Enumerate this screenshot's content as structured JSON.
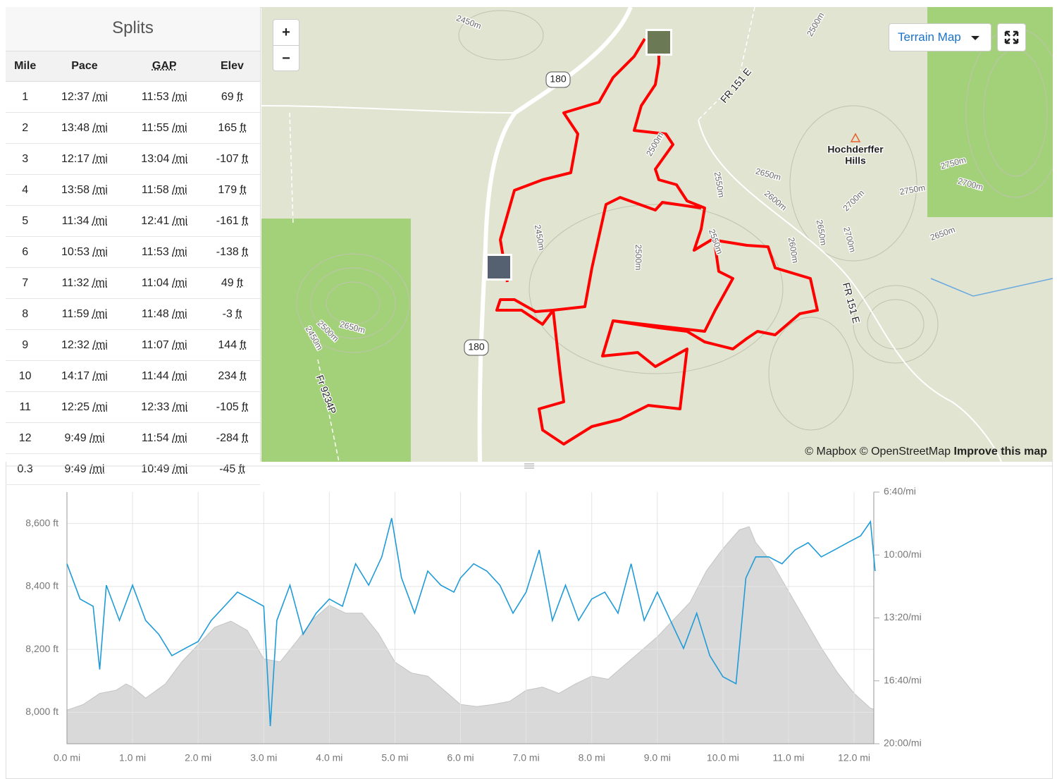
{
  "splits": {
    "title": "Splits",
    "columns": [
      "Mile",
      "Pace",
      "GAP",
      "Elev"
    ],
    "pace_unit": "/mi",
    "elev_unit": "ft",
    "rows": [
      [
        "1",
        "12:37",
        "11:53",
        "69"
      ],
      [
        "2",
        "13:48",
        "11:55",
        "165"
      ],
      [
        "3",
        "12:17",
        "13:04",
        "-107"
      ],
      [
        "4",
        "13:58",
        "11:58",
        "179"
      ],
      [
        "5",
        "11:34",
        "12:41",
        "-161"
      ],
      [
        "6",
        "10:53",
        "11:53",
        "-138"
      ],
      [
        "7",
        "11:32",
        "11:04",
        "49"
      ],
      [
        "8",
        "11:59",
        "11:48",
        "-3"
      ],
      [
        "9",
        "12:32",
        "11:07",
        "144"
      ],
      [
        "10",
        "14:17",
        "11:44",
        "234"
      ],
      [
        "11",
        "12:25",
        "12:33",
        "-105"
      ],
      [
        "12",
        "9:49",
        "11:54",
        "-284"
      ],
      [
        "0.3",
        "9:49",
        "10:49",
        "-45"
      ]
    ]
  },
  "map": {
    "zoom_in": "+",
    "zoom_out": "−",
    "layer": "Terrain Map",
    "attribution": "© Mapbox © OpenStreetMap",
    "improve": "Improve this map",
    "labels": [
      "2450m",
      "2500m",
      "180",
      "180",
      "FR 151 E",
      "FR 151 E",
      "Hochderffer",
      "Hills",
      "2500m",
      "2650m",
      "2550m",
      "2600m",
      "2700m",
      "2750m",
      "2750m",
      "2700m",
      "2700m",
      "2650m",
      "2650m",
      "2600m",
      "2550m",
      "2500m",
      "2450m",
      "2650m",
      "2500m",
      "2450m",
      "Fr 9234P"
    ]
  },
  "chart_data": {
    "type": "line",
    "xlim": [
      0,
      12.3
    ],
    "xticks": [
      {
        "value": 0,
        "label": "0.0 mi"
      },
      {
        "value": 1,
        "label": "1.0 mi"
      },
      {
        "value": 2,
        "label": "2.0 mi"
      },
      {
        "value": 3,
        "label": "3.0 mi"
      },
      {
        "value": 4,
        "label": "4.0 mi"
      },
      {
        "value": 5,
        "label": "5.0 mi"
      },
      {
        "value": 6,
        "label": "6.0 mi"
      },
      {
        "value": 7,
        "label": "7.0 mi"
      },
      {
        "value": 8,
        "label": "8.0 mi"
      },
      {
        "value": 9,
        "label": "9.0 mi"
      },
      {
        "value": 10,
        "label": "10.0 mi"
      },
      {
        "value": 11,
        "label": "11.0 mi"
      },
      {
        "value": 12,
        "label": "12.0 mi"
      }
    ],
    "ylim": [
      7900,
      8700
    ],
    "yticks": [
      {
        "value": 8000,
        "label": "8,000 ft"
      },
      {
        "value": 8200,
        "label": "8,200 ft"
      },
      {
        "value": 8400,
        "label": "8,400 ft"
      },
      {
        "value": 8600,
        "label": "8,600 ft"
      }
    ],
    "y2lim": [
      1200,
      400
    ],
    "y2ticks": [
      {
        "value": 400,
        "label": "6:40/mi"
      },
      {
        "value": 600,
        "label": "10:00/mi"
      },
      {
        "value": 800,
        "label": "13:20/mi"
      },
      {
        "value": 1000,
        "label": "16:40/mi"
      },
      {
        "value": 1200,
        "label": "20:00/mi"
      }
    ],
    "grid": true,
    "series": [
      {
        "type": "area",
        "color": "#d9d9d9",
        "x": [
          0,
          0.25,
          0.5,
          0.75,
          0.9,
          1.0,
          1.2,
          1.5,
          1.75,
          2.0,
          2.25,
          2.5,
          2.75,
          3.0,
          3.25,
          3.5,
          3.75,
          4.0,
          4.25,
          4.5,
          4.75,
          5.0,
          5.25,
          5.5,
          5.75,
          6.0,
          6.25,
          6.5,
          6.75,
          7.0,
          7.25,
          7.5,
          7.75,
          8.0,
          8.25,
          8.5,
          8.75,
          9.0,
          9.25,
          9.5,
          9.75,
          10.0,
          10.25,
          10.4,
          10.5,
          10.75,
          11.0,
          11.25,
          11.5,
          11.75,
          12.0,
          12.25,
          12.3
        ],
        "values": [
          8007,
          8025,
          8060,
          8070,
          8090,
          8080,
          8045,
          8090,
          8160,
          8215,
          8270,
          8290,
          8260,
          8170,
          8160,
          8225,
          8295,
          8340,
          8315,
          8315,
          8250,
          8160,
          8125,
          8115,
          8070,
          8025,
          8018,
          8025,
          8035,
          8070,
          8080,
          8060,
          8090,
          8115,
          8105,
          8150,
          8195,
          8240,
          8295,
          8350,
          8450,
          8520,
          8580,
          8590,
          8540,
          8475,
          8385,
          8295,
          8205,
          8125,
          8060,
          8013,
          8010
        ]
      },
      {
        "type": "line",
        "color": "#1f9bd7",
        "axis": "y2",
        "x": [
          0,
          0.2,
          0.4,
          0.5,
          0.6,
          0.8,
          1.0,
          1.2,
          1.4,
          1.6,
          1.8,
          2.0,
          2.2,
          2.4,
          2.6,
          2.8,
          3.0,
          3.1,
          3.2,
          3.4,
          3.6,
          3.8,
          4.0,
          4.2,
          4.4,
          4.6,
          4.8,
          4.95,
          5.1,
          5.3,
          5.5,
          5.7,
          5.9,
          6.0,
          6.2,
          6.4,
          6.6,
          6.8,
          7.0,
          7.2,
          7.4,
          7.6,
          7.8,
          8.0,
          8.2,
          8.4,
          8.6,
          8.8,
          9.0,
          9.2,
          9.4,
          9.6,
          9.8,
          10.0,
          10.2,
          10.35,
          10.5,
          10.7,
          10.9,
          11.1,
          11.3,
          11.5,
          11.7,
          11.9,
          12.1,
          12.25,
          12.32
        ],
        "values": [
          628,
          740,
          763,
          964,
          696,
          808,
          696,
          808,
          852,
          920,
          897,
          875,
          808,
          763,
          718,
          740,
          763,
          1144,
          808,
          696,
          852,
          785,
          740,
          763,
          628,
          696,
          606,
          483,
          673,
          785,
          651,
          696,
          718,
          673,
          628,
          651,
          696,
          785,
          718,
          584,
          808,
          696,
          808,
          740,
          718,
          785,
          628,
          808,
          718,
          808,
          897,
          785,
          920,
          987,
          1009,
          673,
          606,
          606,
          628,
          584,
          561,
          606,
          584,
          561,
          539,
          494,
          651
        ]
      }
    ]
  }
}
